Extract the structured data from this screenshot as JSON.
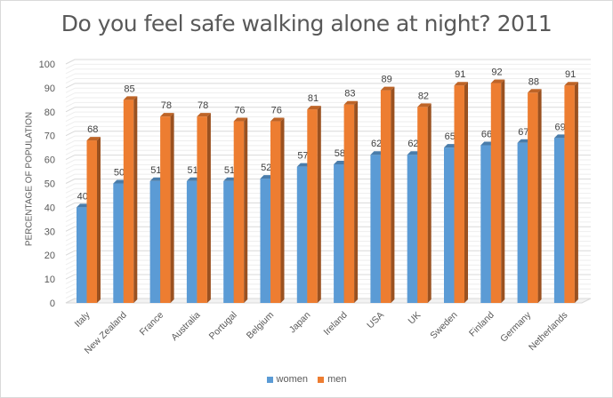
{
  "chart_data": {
    "type": "bar",
    "title": "Do you feel safe walking alone at night? 2011",
    "xlabel": "",
    "ylabel": "PERCENTAGE OF POPULATION",
    "ylim": [
      0,
      100
    ],
    "yticks": [
      0,
      10,
      20,
      30,
      40,
      50,
      60,
      70,
      80,
      90,
      100
    ],
    "grid": true,
    "legend_position": "bottom",
    "categories": [
      "Italy",
      "New Zealand",
      "France",
      "Australia",
      "Portugal",
      "Belgium",
      "Japan",
      "Ireland",
      "USA",
      "UK",
      "Sweden",
      "Finland",
      "Germany",
      "Netherlands"
    ],
    "series": [
      {
        "name": "women",
        "color": "#5b9bd5",
        "values": [
          40,
          50,
          51,
          51,
          51,
          52,
          57,
          58,
          62,
          62,
          65,
          66,
          67,
          69
        ]
      },
      {
        "name": "men",
        "color": "#ed7d31",
        "values": [
          68,
          85,
          78,
          78,
          76,
          76,
          81,
          83,
          89,
          82,
          91,
          92,
          88,
          91
        ]
      }
    ]
  }
}
